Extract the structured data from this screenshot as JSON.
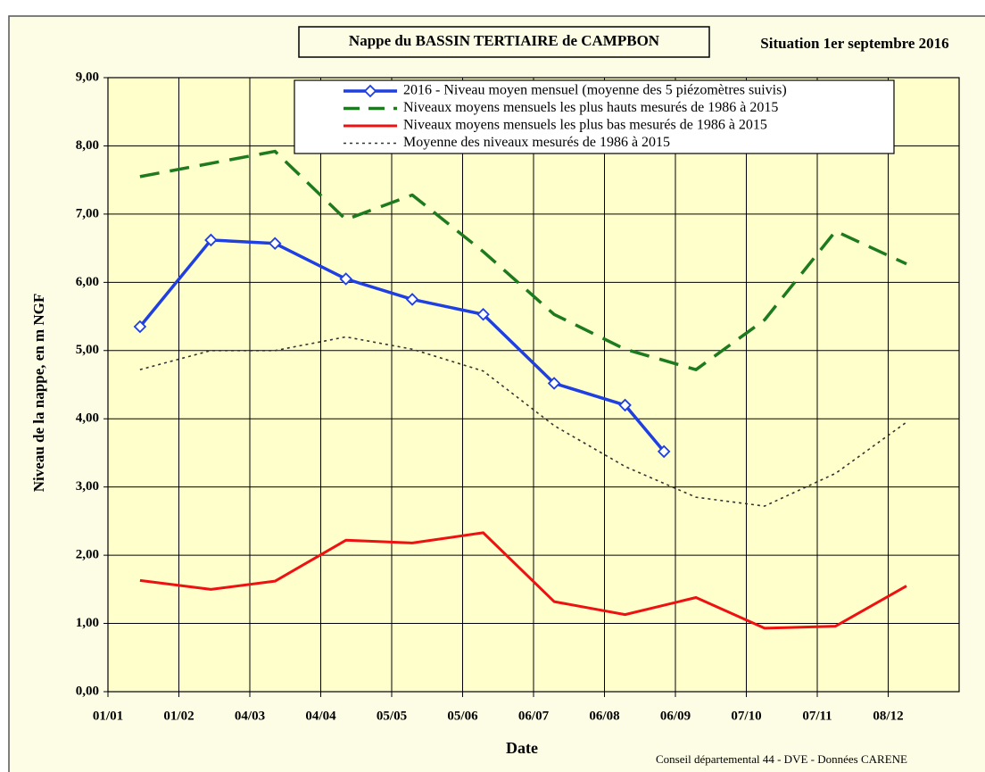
{
  "chart_data": {
    "type": "line",
    "title": "Nappe du BASSIN TERTIAIRE de CAMPBON",
    "subtitle": "Situation 1er septembre 2016",
    "x_label": "Date",
    "y_label": "Niveau de la nappe, en m NGF",
    "source": "Conseil départemental 44 - DVE -    Données CARENE",
    "xlim": [
      1,
      373
    ],
    "xticks": [
      {
        "value": 1,
        "label": "01/01"
      },
      {
        "value": 32,
        "label": "01/02"
      },
      {
        "value": 63,
        "label": "04/03"
      },
      {
        "value": 94,
        "label": "04/04"
      },
      {
        "value": 125,
        "label": "05/05"
      },
      {
        "value": 156,
        "label": "05/06"
      },
      {
        "value": 187,
        "label": "06/07"
      },
      {
        "value": 218,
        "label": "06/08"
      },
      {
        "value": 249,
        "label": "06/09"
      },
      {
        "value": 280,
        "label": "07/10"
      },
      {
        "value": 311,
        "label": "07/11"
      },
      {
        "value": 342,
        "label": "08/12"
      }
    ],
    "ylim": [
      0,
      9
    ],
    "yticks": [
      {
        "value": 0,
        "label": "0,00"
      },
      {
        "value": 1,
        "label": "1,00"
      },
      {
        "value": 2,
        "label": "2,00"
      },
      {
        "value": 3,
        "label": "3,00"
      },
      {
        "value": 4,
        "label": "4,00"
      },
      {
        "value": 5,
        "label": "5,00"
      },
      {
        "value": 6,
        "label": "6,00"
      },
      {
        "value": 7,
        "label": "7,00"
      },
      {
        "value": 8,
        "label": "8,00"
      },
      {
        "value": 9,
        "label": "9,00"
      }
    ],
    "grid": true,
    "series": [
      {
        "name": "2016 - Niveau moyen mensuel (moyenne des 5 piézomètres suivis)",
        "color": "#1f3fe0",
        "style": "solid-marker",
        "x": [
          15,
          46,
          74,
          105,
          134,
          165,
          196,
          227,
          244
        ],
        "values": [
          5.35,
          6.62,
          6.57,
          6.05,
          5.75,
          5.53,
          4.52,
          4.2,
          3.52
        ]
      },
      {
        "name": "Niveaux moyens mensuels les plus hauts mesurés de 1986 à 2015",
        "color": "#1e7a1e",
        "style": "dashed",
        "x": [
          15,
          74,
          105,
          134,
          165,
          196,
          227,
          258,
          288,
          319,
          350
        ],
        "values": [
          7.55,
          7.92,
          6.92,
          7.28,
          6.45,
          5.53,
          5.02,
          4.72,
          5.45,
          6.75,
          6.27
        ]
      },
      {
        "name": "Niveaux moyens mensuels les plus bas mesurés de 1986 à 2015",
        "color": "#ee1111",
        "style": "solid",
        "x": [
          15,
          46,
          74,
          105,
          134,
          165,
          196,
          227,
          258,
          288,
          319,
          350
        ],
        "values": [
          1.63,
          1.5,
          1.62,
          2.22,
          2.18,
          2.33,
          1.32,
          1.13,
          1.38,
          0.93,
          0.96,
          1.55
        ]
      },
      {
        "name": "Moyenne des niveaux mesurés de 1986 à 2015",
        "color": "#333333",
        "style": "dotted",
        "x": [
          15,
          46,
          74,
          105,
          134,
          165,
          196,
          227,
          258,
          288,
          319,
          350
        ],
        "values": [
          4.72,
          5.0,
          5.0,
          5.2,
          5.02,
          4.7,
          3.9,
          3.3,
          2.85,
          2.72,
          3.2,
          3.95
        ]
      }
    ]
  }
}
